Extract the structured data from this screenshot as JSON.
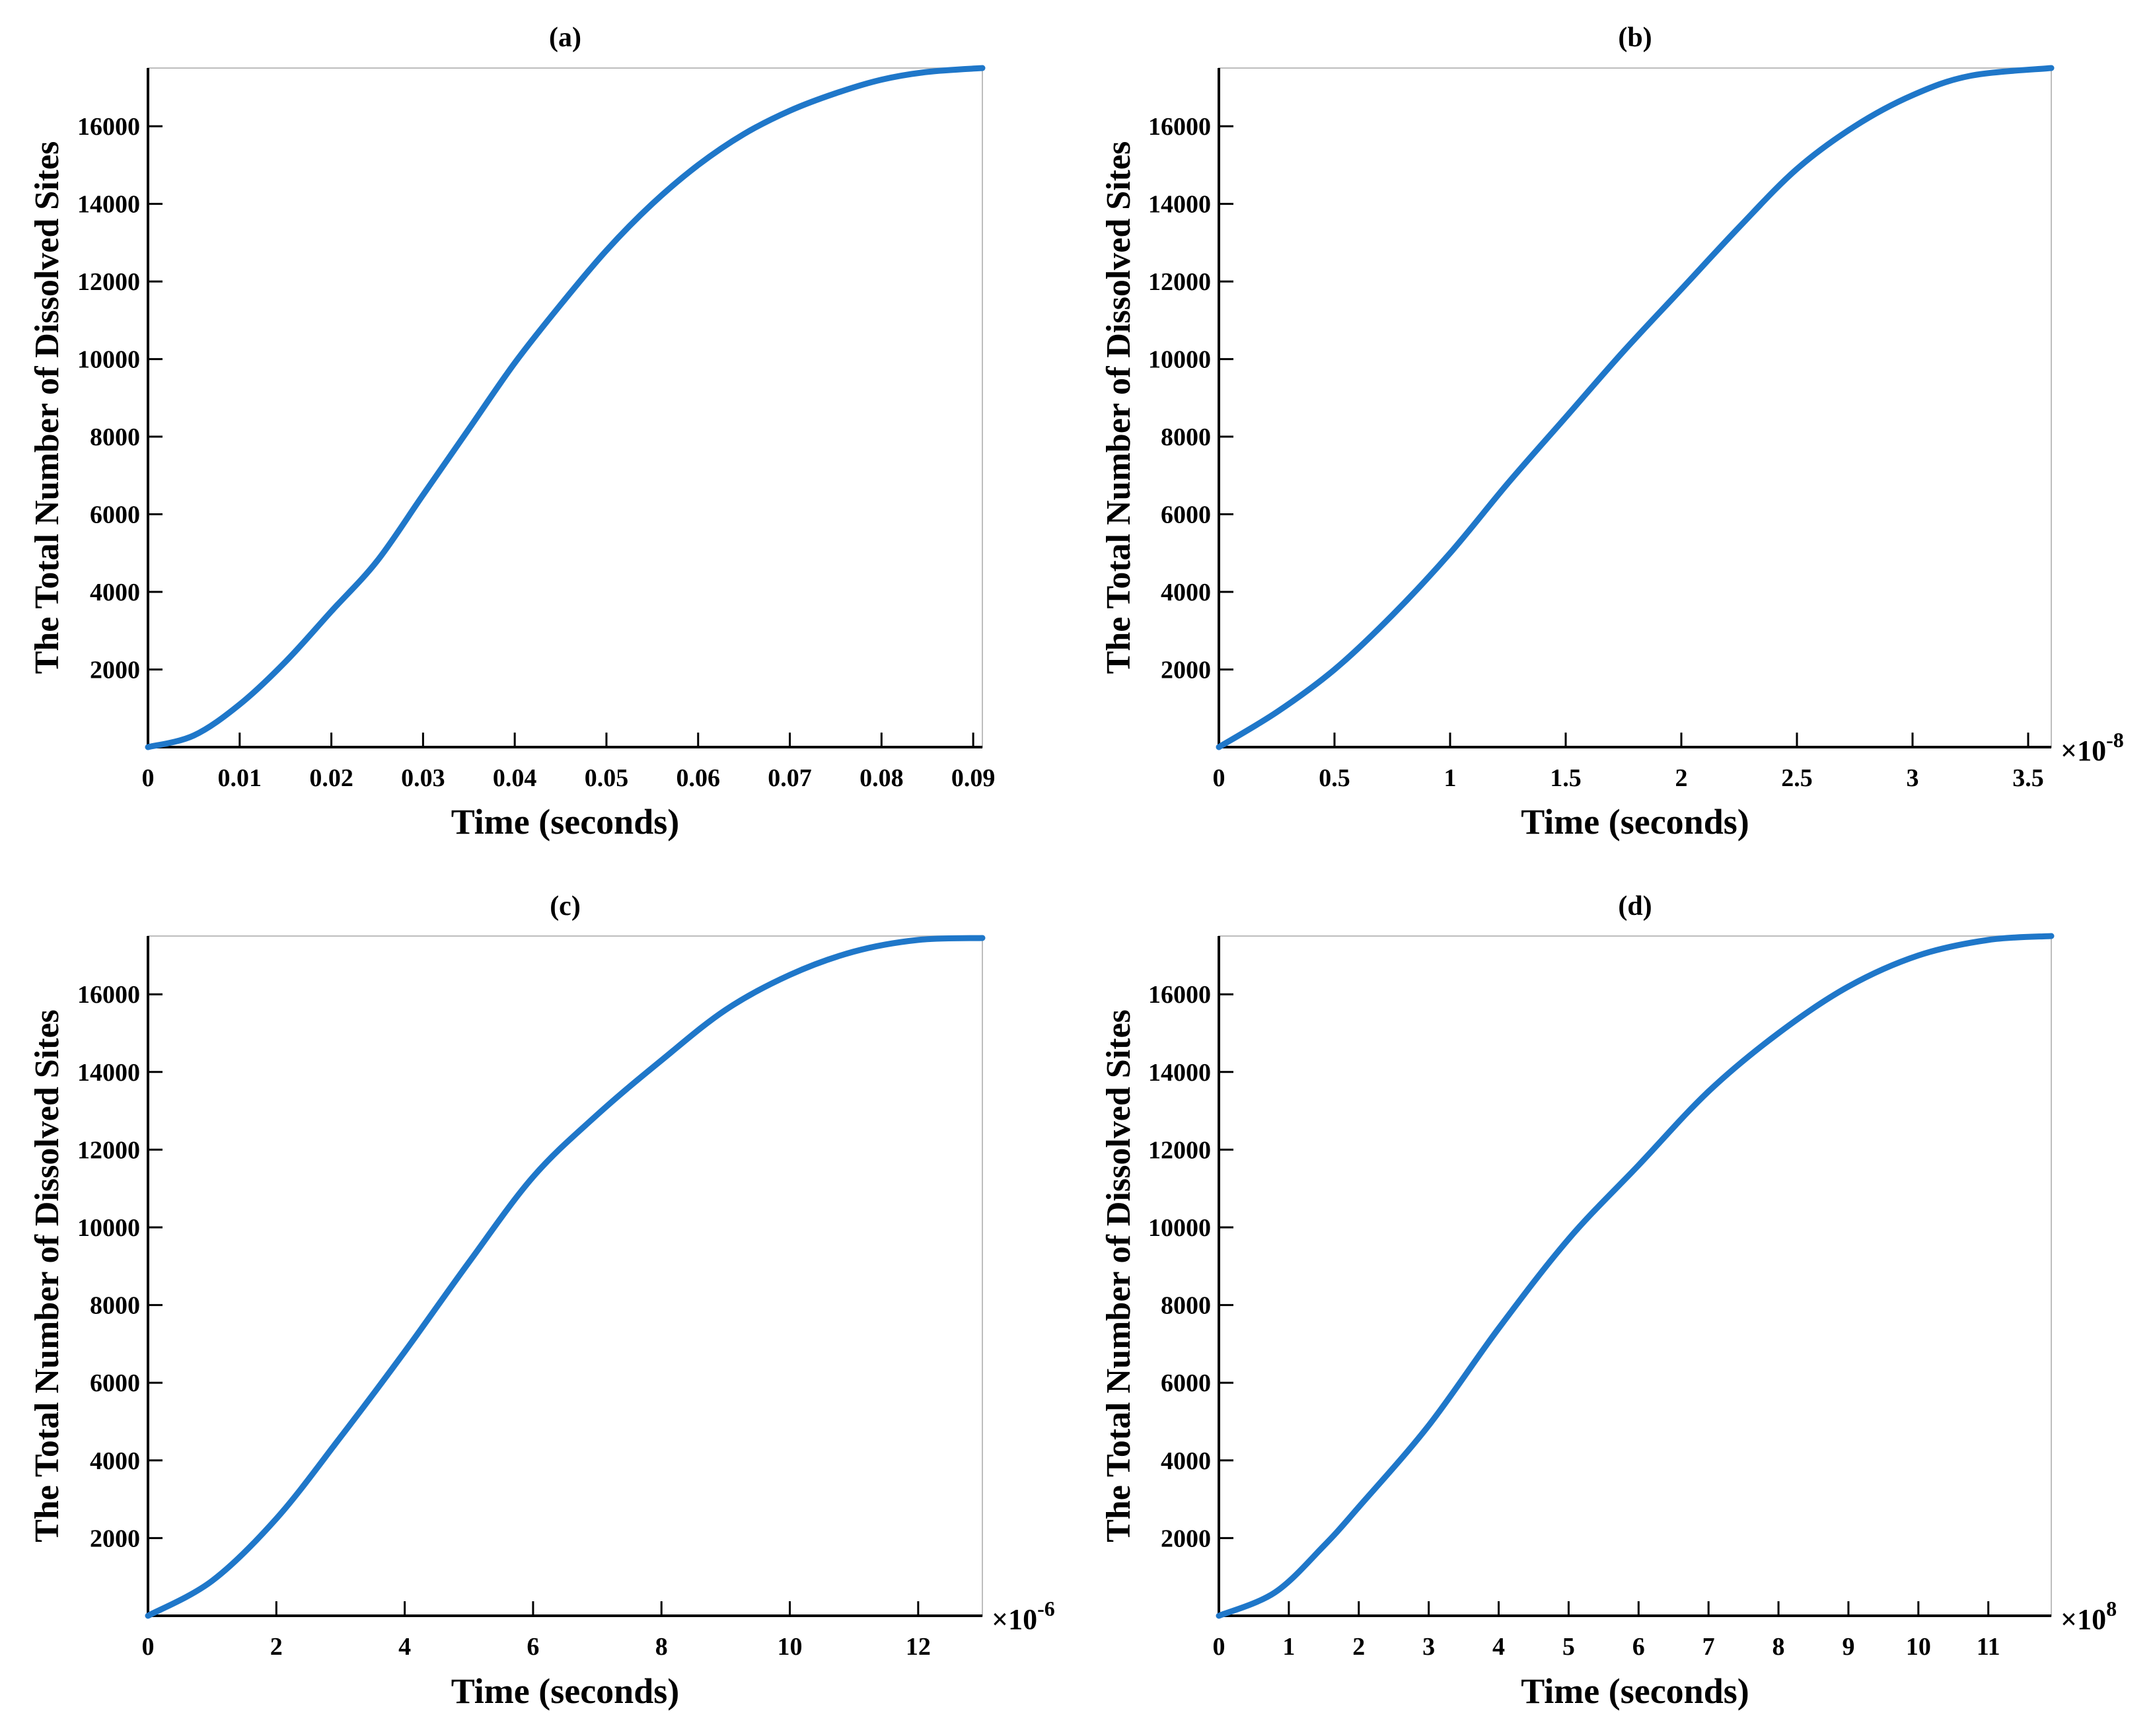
{
  "chart_data": [
    {
      "type": "line",
      "title": "(a)",
      "xlabel": "Time (seconds)",
      "ylabel": "The Total Number of Dissolved Sites",
      "x_multiplier": "",
      "xlim": [
        0,
        0.091
      ],
      "ylim": [
        0,
        17500
      ],
      "xticks": [
        0,
        0.01,
        0.02,
        0.03,
        0.04,
        0.05,
        0.06,
        0.07,
        0.08,
        0.09
      ],
      "xtick_labels": [
        "0",
        "0.01",
        "0.02",
        "0.03",
        "0.04",
        "0.05",
        "0.06",
        "0.07",
        "0.08",
        "0.09"
      ],
      "yticks": [
        2000,
        4000,
        6000,
        8000,
        10000,
        12000,
        14000,
        16000
      ],
      "ytick_labels": [
        "2000",
        "4000",
        "6000",
        "8000",
        "10000",
        "12000",
        "14000",
        "16000"
      ],
      "series": [
        {
          "color": "#1f77c9",
          "x": [
            0,
            0.005,
            0.01,
            0.015,
            0.02,
            0.025,
            0.03,
            0.035,
            0.04,
            0.045,
            0.05,
            0.055,
            0.06,
            0.065,
            0.07,
            0.075,
            0.08,
            0.085,
            0.091
          ],
          "y": [
            0,
            300,
            1100,
            2200,
            3500,
            4800,
            6500,
            8200,
            9900,
            11400,
            12800,
            14000,
            15000,
            15800,
            16400,
            16850,
            17200,
            17400,
            17500
          ]
        }
      ]
    },
    {
      "type": "line",
      "title": "(b)",
      "xlabel": "Time (seconds)",
      "ylabel": "The Total Number of Dissolved Sites",
      "x_multiplier": "×10",
      "x_multiplier_exp": "-8",
      "xlim": [
        0,
        3.6
      ],
      "ylim": [
        0,
        17500
      ],
      "xticks": [
        0,
        0.5,
        1,
        1.5,
        2,
        2.5,
        3,
        3.5
      ],
      "xtick_labels": [
        "0",
        "0.5",
        "1",
        "1.5",
        "2",
        "2.5",
        "3",
        "3.5"
      ],
      "yticks": [
        2000,
        4000,
        6000,
        8000,
        10000,
        12000,
        14000,
        16000
      ],
      "ytick_labels": [
        "2000",
        "4000",
        "6000",
        "8000",
        "10000",
        "12000",
        "14000",
        "16000"
      ],
      "series": [
        {
          "color": "#1f77c9",
          "x": [
            0,
            0.25,
            0.5,
            0.75,
            1,
            1.25,
            1.5,
            1.75,
            2,
            2.25,
            2.5,
            2.75,
            3,
            3.25,
            3.6
          ],
          "y": [
            0,
            900,
            2000,
            3400,
            5000,
            6800,
            8500,
            10200,
            11800,
            13400,
            14900,
            16000,
            16800,
            17300,
            17500
          ]
        }
      ]
    },
    {
      "type": "line",
      "title": "(c)",
      "xlabel": "Time (seconds)",
      "ylabel": "The Total Number of Dissolved Sites",
      "x_multiplier": "×10",
      "x_multiplier_exp": "-6",
      "xlim": [
        0,
        13
      ],
      "ylim": [
        0,
        17500
      ],
      "xticks": [
        0,
        2,
        4,
        6,
        8,
        10,
        12
      ],
      "xtick_labels": [
        "0",
        "2",
        "4",
        "6",
        "8",
        "10",
        "12"
      ],
      "yticks": [
        2000,
        4000,
        6000,
        8000,
        10000,
        12000,
        14000,
        16000
      ],
      "ytick_labels": [
        "2000",
        "4000",
        "6000",
        "8000",
        "10000",
        "12000",
        "14000",
        "16000"
      ],
      "series": [
        {
          "color": "#1f77c9",
          "x": [
            0,
            1,
            2,
            3,
            4,
            5,
            6,
            7,
            8,
            9,
            10,
            11,
            12,
            13
          ],
          "y": [
            0,
            900,
            2500,
            4600,
            6800,
            9100,
            11300,
            12900,
            14300,
            15600,
            16500,
            17100,
            17400,
            17450
          ]
        }
      ]
    },
    {
      "type": "line",
      "title": "(d)",
      "xlabel": "Time (seconds)",
      "ylabel": "The Total Number of Dissolved Sites",
      "x_multiplier": "×10",
      "x_multiplier_exp": "8",
      "xlim": [
        0,
        11.9
      ],
      "ylim": [
        0,
        17500
      ],
      "xticks": [
        0,
        1,
        2,
        3,
        4,
        5,
        6,
        7,
        8,
        9,
        10,
        11
      ],
      "xtick_labels": [
        "0",
        "1",
        "2",
        "3",
        "4",
        "5",
        "6",
        "7",
        "8",
        "9",
        "10",
        "11"
      ],
      "yticks": [
        2000,
        4000,
        6000,
        8000,
        10000,
        12000,
        14000,
        16000
      ],
      "ytick_labels": [
        "2000",
        "4000",
        "6000",
        "8000",
        "10000",
        "12000",
        "14000",
        "16000"
      ],
      "series": [
        {
          "color": "#1f77c9",
          "x": [
            0,
            0.8,
            1.5,
            2,
            3,
            4,
            5,
            6,
            7,
            8,
            9,
            10,
            11,
            11.9
          ],
          "y": [
            0,
            600,
            1800,
            2800,
            4900,
            7400,
            9700,
            11600,
            13500,
            15000,
            16200,
            17000,
            17400,
            17500
          ]
        }
      ]
    }
  ]
}
